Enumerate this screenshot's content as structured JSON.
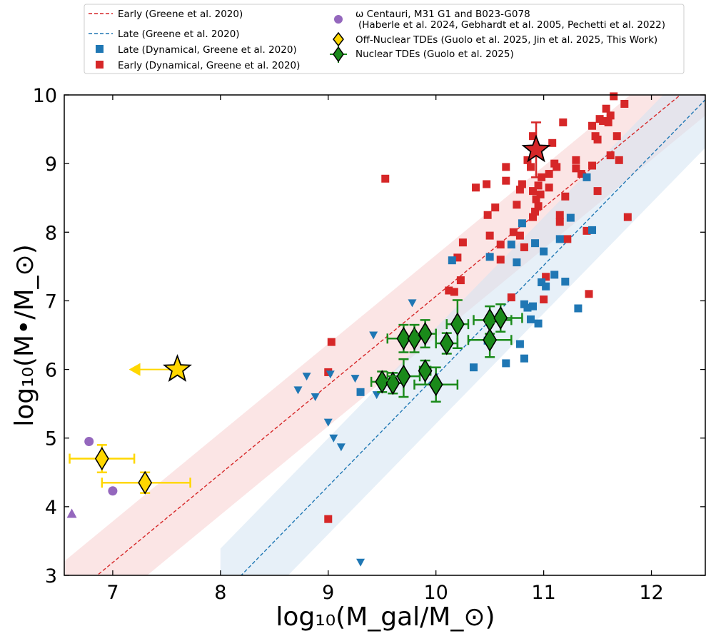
{
  "chart_data": {
    "type": "scatter",
    "xlabel": "log₁₀(M_gal/M_⊙)",
    "ylabel": "log₁₀(M•/M_⊙)",
    "xlim": [
      6.55,
      12.5
    ],
    "ylim": [
      3,
      10
    ],
    "xticks": [
      "7",
      "8",
      "9",
      "10",
      "11",
      "12"
    ],
    "yticks": [
      "3",
      "4",
      "5",
      "6",
      "7",
      "8",
      "9",
      "10"
    ],
    "legend": {
      "position": "top",
      "entries": [
        {
          "label": "Early (Greene et al. 2020)",
          "marker": "dashed-line",
          "color": "#d62728"
        },
        {
          "label": "Late (Greene et al. 2020)",
          "marker": "dashed-line",
          "color": "#1f77b4"
        },
        {
          "label": "Late (Dynamical, Greene et al. 2020)",
          "marker": "square",
          "color": "#1f77b4"
        },
        {
          "label": "Early (Dynamical, Greene et al. 2020)",
          "marker": "square",
          "color": "#d62728"
        },
        {
          "label": "ω Centauri, M31 G1 and B023-G078",
          "marker": "circle",
          "color": "#9467bd"
        },
        {
          "label": "(Haberle et al. 2024, Gebhardt et al. 2005, Pechetti et al. 2022)",
          "marker": "none",
          "color": ""
        },
        {
          "label": "Off-Nuclear TDEs (Guolo et al. 2025, Jin et al. 2025, This Work)",
          "marker": "diamond",
          "color": "#ffd700"
        },
        {
          "label": "Nuclear TDEs (Guolo et al. 2025)",
          "marker": "diamond",
          "color": "#1a8a1a"
        }
      ]
    },
    "relations": [
      {
        "name": "Early",
        "color": "#d62728",
        "band_color": "#f8d0d0",
        "points": [
          [
            6.5,
            2.54
          ],
          [
            12.5,
            10.3
          ]
        ],
        "scatter": 0.6
      },
      {
        "name": "Late",
        "color": "#1f77b4",
        "band_color": "#d3e3f3",
        "points": [
          [
            8.0,
            2.69
          ],
          [
            12.5,
            9.93
          ]
        ],
        "scatter": 0.7
      }
    ],
    "series": [
      {
        "name": "Early (Dynamical, Greene et al. 2020)",
        "marker": "square",
        "color": "#d62728",
        "x": [
          9.53,
          9.03,
          9.0,
          9.0,
          10.12,
          10.17,
          10.23,
          10.2,
          10.25,
          10.37,
          10.47,
          10.48,
          10.5,
          10.65,
          10.55,
          10.6,
          10.65,
          10.72,
          10.75,
          10.78,
          10.78,
          10.8,
          10.82,
          10.85,
          10.88,
          10.9,
          10.9,
          10.92,
          10.93,
          10.95,
          10.95,
          10.97,
          10.98,
          11.0,
          11.02,
          11.05,
          11.08,
          11.1,
          11.12,
          11.15,
          11.18,
          11.2,
          11.22,
          11.3,
          11.35,
          11.4,
          11.42,
          11.45,
          11.48,
          11.5,
          11.52,
          11.55,
          11.58,
          11.6,
          11.62,
          11.65,
          11.68,
          11.7,
          11.75,
          11.78,
          11.3,
          11.5,
          11.62,
          11.45,
          10.9,
          11.05,
          11.15,
          10.6,
          10.7
        ],
        "y": [
          8.78,
          6.4,
          5.96,
          3.82,
          7.15,
          7.13,
          7.3,
          7.63,
          7.85,
          8.65,
          8.7,
          8.25,
          7.95,
          8.75,
          8.36,
          7.82,
          8.95,
          8.0,
          8.4,
          7.95,
          8.62,
          8.7,
          7.78,
          9.05,
          8.95,
          8.6,
          8.22,
          8.3,
          8.48,
          8.38,
          8.68,
          8.55,
          8.8,
          7.02,
          7.35,
          8.85,
          9.3,
          9.0,
          8.95,
          8.15,
          9.6,
          8.52,
          7.9,
          9.05,
          8.85,
          8.02,
          7.1,
          9.55,
          9.4,
          9.35,
          9.65,
          9.62,
          9.8,
          9.6,
          9.12,
          9.98,
          9.4,
          9.05,
          9.87,
          8.22,
          8.93,
          8.6,
          9.7,
          8.97,
          9.4,
          8.65,
          8.25,
          7.6,
          7.05
        ],
        "note": "approximate"
      },
      {
        "name": "Late (Dynamical, Greene et al. 2020)",
        "marker": "square",
        "color": "#1f77b4",
        "x": [
          9.3,
          10.15,
          10.35,
          10.5,
          10.65,
          10.7,
          10.75,
          10.78,
          10.8,
          10.82,
          10.85,
          10.88,
          10.9,
          10.92,
          10.95,
          10.98,
          11.0,
          11.02,
          11.1,
          11.15,
          11.2,
          11.25,
          11.32,
          11.4,
          11.45,
          10.82,
          10.48
        ],
        "y": [
          5.67,
          7.59,
          6.03,
          7.64,
          6.09,
          7.82,
          7.56,
          6.37,
          8.13,
          6.16,
          6.9,
          6.73,
          6.92,
          7.84,
          6.67,
          7.27,
          7.72,
          7.21,
          7.38,
          7.9,
          7.28,
          8.21,
          6.89,
          8.8,
          8.03,
          6.95,
          6.42
        ],
        "note": "approximate"
      },
      {
        "name": "Late upper limits",
        "marker": "triangle-down",
        "color": "#1f77b4",
        "x": [
          8.72,
          8.8,
          8.88,
          9.0,
          9.02,
          9.05,
          9.12,
          9.25,
          9.3,
          9.45,
          9.42,
          9.78
        ],
        "y": [
          5.7,
          5.9,
          5.6,
          5.23,
          5.93,
          5.0,
          4.87,
          5.87,
          3.19,
          5.63,
          6.5,
          6.97
        ],
        "note": "approximate"
      },
      {
        "name": "ω Centauri, M31 G1 and B023-G078",
        "marker": "circle",
        "color": "#9467bd",
        "x": [
          6.78,
          7.0
        ],
        "y": [
          4.95,
          4.23
        ]
      },
      {
        "name": "Upper limit (triangle)",
        "marker": "triangle-up",
        "color": "#9467bd",
        "x": [
          6.62
        ],
        "y": [
          3.9
        ]
      },
      {
        "name": "Off-Nuclear TDEs (Guolo et al. 2025, Jin et al. 2025, This Work)",
        "marker": "diamond",
        "color": "#ffd700",
        "points": [
          {
            "x": 6.9,
            "y": 4.7,
            "xerr": [
              0.3,
              0.3
            ],
            "yerr": [
              0.2,
              0.2
            ]
          },
          {
            "x": 7.3,
            "y": 4.35,
            "xerr": [
              0.4,
              0.42
            ],
            "yerr": [
              0.15,
              0.15
            ]
          }
        ]
      },
      {
        "name": "Off-Nuclear TDE upper limit (star)",
        "marker": "star",
        "color": "#ffd700",
        "points": [
          {
            "x": 7.6,
            "y": 6.0,
            "arrow_to_x": 7.15
          }
        ]
      },
      {
        "name": "Nuclear TDEs (Guolo et al. 2025)",
        "marker": "diamond",
        "color": "#1a8a1a",
        "points": [
          {
            "x": 9.5,
            "y": 5.82,
            "xerr": [
              0.1,
              0.1
            ],
            "yerr": [
              0.15,
              0.15
            ]
          },
          {
            "x": 9.6,
            "y": 5.8,
            "xerr": [
              0.1,
              0.1
            ],
            "yerr": [
              0.15,
              0.15
            ]
          },
          {
            "x": 9.7,
            "y": 5.9,
            "xerr": [
              0.15,
              0.15
            ],
            "yerr": [
              0.3,
              0.25
            ]
          },
          {
            "x": 9.7,
            "y": 6.45,
            "xerr": [
              0.15,
              0.1
            ],
            "yerr": [
              0.2,
              0.2
            ]
          },
          {
            "x": 9.8,
            "y": 6.45,
            "xerr": [
              0.1,
              0.1
            ],
            "yerr": [
              0.2,
              0.2
            ]
          },
          {
            "x": 9.9,
            "y": 6.52,
            "xerr": [
              0.1,
              0.1
            ],
            "yerr": [
              0.2,
              0.2
            ]
          },
          {
            "x": 9.9,
            "y": 5.98,
            "xerr": [
              0.05,
              0.05
            ],
            "yerr": [
              0.2,
              0.15
            ]
          },
          {
            "x": 10.0,
            "y": 5.78,
            "xerr": [
              0.2,
              0.2
            ],
            "yerr": [
              0.25,
              0.25
            ]
          },
          {
            "x": 10.1,
            "y": 6.38,
            "xerr": [
              0.1,
              0.1
            ],
            "yerr": [
              0.15,
              0.15
            ]
          },
          {
            "x": 10.2,
            "y": 6.66,
            "xerr": [
              0.1,
              0.1
            ],
            "yerr": [
              0.35,
              0.35
            ]
          },
          {
            "x": 10.5,
            "y": 6.72,
            "xerr": [
              0.15,
              0.2
            ],
            "yerr": [
              0.2,
              0.2
            ]
          },
          {
            "x": 10.5,
            "y": 6.43,
            "xerr": [
              0.2,
              0.2
            ],
            "yerr": [
              0.25,
              0.25
            ]
          },
          {
            "x": 10.6,
            "y": 6.75,
            "xerr": [
              0.1,
              0.2
            ],
            "yerr": [
              0.2,
              0.2
            ]
          }
        ]
      },
      {
        "name": "This Work nuclear (star)",
        "marker": "star",
        "color": "#d62728",
        "points": [
          {
            "x": 10.93,
            "y": 9.2,
            "yerr": [
              0.4,
              0.4
            ]
          }
        ]
      }
    ]
  }
}
